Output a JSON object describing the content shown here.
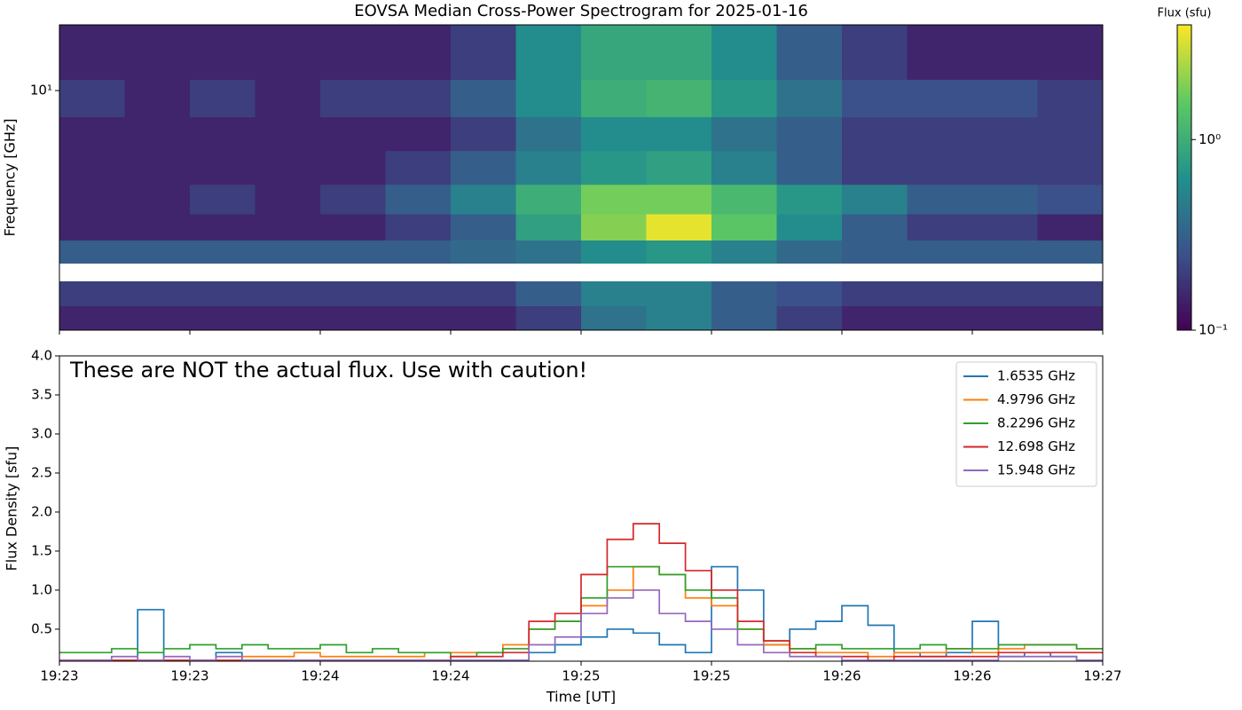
{
  "chart_data": [
    {
      "type": "heatmap",
      "title": "EOVSA Median Cross-Power Spectrogram for 2025-01-16",
      "ylabel": "Frequency [GHz]",
      "log_y": true,
      "xlim": [
        69780,
        70020
      ],
      "ylim": [
        1.3,
        17.5
      ],
      "yticks": [
        {
          "value": 10,
          "label": "10¹"
        }
      ],
      "colormap": "viridis",
      "x_bins": [
        69780,
        69795,
        69810,
        69825,
        69840,
        69855,
        69870,
        69885,
        69900,
        69915,
        69930,
        69945,
        69960,
        69975,
        69990,
        70005,
        70020
      ],
      "y_bins": [
        1.3,
        1.6,
        1.97,
        2.3,
        2.8,
        3.5,
        4.5,
        6,
        8,
        11,
        17.5
      ],
      "z": [
        [
          0.15,
          0.15,
          0.15,
          0.15,
          0.15,
          0.15,
          0.15,
          0.2,
          0.4,
          0.5,
          0.3,
          0.2,
          0.15,
          0.15,
          0.15,
          0.15
        ],
        [
          0.2,
          0.2,
          0.2,
          0.2,
          0.2,
          0.2,
          0.2,
          0.3,
          0.5,
          0.5,
          0.3,
          0.25,
          0.2,
          0.2,
          0.2,
          0.2
        ],
        [
          null,
          null,
          null,
          null,
          null,
          null,
          null,
          null,
          null,
          null,
          null,
          null,
          null,
          null,
          null,
          null
        ],
        [
          0.3,
          0.3,
          0.3,
          0.3,
          0.3,
          0.3,
          0.35,
          0.4,
          0.6,
          0.7,
          0.5,
          0.35,
          0.3,
          0.3,
          0.3,
          0.3
        ],
        [
          0.15,
          0.15,
          0.15,
          0.15,
          0.15,
          0.2,
          0.3,
          0.8,
          2.0,
          3.5,
          1.5,
          0.6,
          0.3,
          0.2,
          0.2,
          0.15
        ],
        [
          0.15,
          0.15,
          0.2,
          0.15,
          0.2,
          0.3,
          0.5,
          1.0,
          1.8,
          1.8,
          1.2,
          0.7,
          0.5,
          0.3,
          0.3,
          0.25
        ],
        [
          0.15,
          0.15,
          0.15,
          0.15,
          0.15,
          0.2,
          0.3,
          0.5,
          0.7,
          0.8,
          0.5,
          0.3,
          0.2,
          0.2,
          0.2,
          0.2
        ],
        [
          0.15,
          0.15,
          0.15,
          0.15,
          0.15,
          0.15,
          0.2,
          0.4,
          0.6,
          0.6,
          0.4,
          0.3,
          0.2,
          0.2,
          0.2,
          0.2
        ],
        [
          0.2,
          0.15,
          0.2,
          0.15,
          0.2,
          0.2,
          0.3,
          0.6,
          1.0,
          1.1,
          0.7,
          0.4,
          0.25,
          0.25,
          0.25,
          0.2
        ],
        [
          0.15,
          0.15,
          0.15,
          0.15,
          0.15,
          0.15,
          0.2,
          0.6,
          0.9,
          0.9,
          0.6,
          0.3,
          0.2,
          0.15,
          0.15,
          0.15
        ]
      ],
      "colorbar": {
        "label": "Flux (sfu)",
        "log": true,
        "lim": [
          0.1,
          4
        ],
        "ticks": [
          {
            "value": 0.1,
            "label": "10⁻¹"
          },
          {
            "value": 1,
            "label": "10⁰"
          }
        ]
      }
    },
    {
      "type": "line",
      "step": true,
      "annotation": "These are NOT the actual flux. Use with caution!",
      "xlabel": "Time [UT]",
      "ylabel": "Flux Density [sfu]",
      "legend": "upper right",
      "xlim": [
        69780,
        70020
      ],
      "xticks": [
        {
          "value": 69780,
          "label": "19:23"
        },
        {
          "value": 69810,
          "label": "19:23"
        },
        {
          "value": 69840,
          "label": "19:24"
        },
        {
          "value": 69870,
          "label": "19:24"
        },
        {
          "value": 69900,
          "label": "19:25"
        },
        {
          "value": 69930,
          "label": "19:25"
        },
        {
          "value": 69960,
          "label": "19:26"
        },
        {
          "value": 69990,
          "label": "19:26"
        },
        {
          "value": 70020,
          "label": "19:27"
        }
      ],
      "ylim": [
        0.09,
        4.0
      ],
      "yticks": [
        0.5,
        {
          "value": 1,
          "label": "1.0"
        },
        1.5,
        {
          "value": 2,
          "label": "2.0"
        },
        2.5,
        {
          "value": 3,
          "label": "3.0"
        },
        3.5,
        {
          "value": 4,
          "label": "4.0"
        }
      ],
      "x": [
        69780,
        69786,
        69792,
        69798,
        69804,
        69810,
        69816,
        69822,
        69828,
        69834,
        69840,
        69846,
        69852,
        69858,
        69864,
        69870,
        69876,
        69882,
        69888,
        69894,
        69900,
        69906,
        69912,
        69918,
        69924,
        69930,
        69936,
        69942,
        69948,
        69954,
        69960,
        69966,
        69972,
        69978,
        69984,
        69990,
        69996,
        70002,
        70008,
        70014
      ],
      "series": [
        {
          "name": "1.6535 GHz",
          "color": "#1f77b4",
          "values": [
            0.1,
            0.1,
            0.1,
            0.75,
            0.1,
            0.1,
            0.2,
            0.1,
            0.1,
            0.1,
            0.1,
            0.1,
            0.1,
            0.1,
            0.1,
            0.1,
            0.1,
            0.1,
            0.2,
            0.3,
            0.4,
            0.5,
            0.45,
            0.3,
            0.2,
            1.3,
            1.0,
            0.3,
            0.5,
            0.6,
            0.8,
            0.55,
            0.2,
            0.15,
            0.2,
            0.6,
            0.15,
            0.2,
            0.15,
            0.1
          ]
        },
        {
          "name": "4.9796 GHz",
          "color": "#ff7f0e",
          "values": [
            0.1,
            0.1,
            0.1,
            0.1,
            0.1,
            0.1,
            0.1,
            0.15,
            0.15,
            0.2,
            0.15,
            0.15,
            0.15,
            0.15,
            0.2,
            0.2,
            0.2,
            0.3,
            0.5,
            0.6,
            0.8,
            1.0,
            1.3,
            1.2,
            0.9,
            0.8,
            0.5,
            0.3,
            0.25,
            0.2,
            0.2,
            0.15,
            0.2,
            0.2,
            0.25,
            0.2,
            0.25,
            0.3,
            0.3,
            0.25
          ]
        },
        {
          "name": "8.2296 GHz",
          "color": "#2ca02c",
          "values": [
            0.2,
            0.2,
            0.25,
            0.2,
            0.25,
            0.3,
            0.25,
            0.3,
            0.25,
            0.25,
            0.3,
            0.2,
            0.25,
            0.2,
            0.2,
            0.15,
            0.2,
            0.25,
            0.5,
            0.6,
            0.9,
            1.3,
            1.3,
            1.2,
            1.0,
            0.9,
            0.5,
            0.35,
            0.25,
            0.3,
            0.25,
            0.25,
            0.25,
            0.3,
            0.25,
            0.25,
            0.3,
            0.3,
            0.3,
            0.25
          ]
        },
        {
          "name": "12.698 GHz",
          "color": "#d62728",
          "values": [
            0.1,
            0.1,
            0.1,
            0.1,
            0.1,
            0.1,
            0.1,
            0.1,
            0.1,
            0.1,
            0.1,
            0.1,
            0.1,
            0.1,
            0.1,
            0.15,
            0.15,
            0.2,
            0.6,
            0.7,
            1.2,
            1.65,
            1.85,
            1.6,
            1.25,
            1.0,
            0.6,
            0.35,
            0.2,
            0.15,
            0.15,
            0.1,
            0.15,
            0.15,
            0.15,
            0.15,
            0.2,
            0.2,
            0.2,
            0.2
          ]
        },
        {
          "name": "15.948 GHz",
          "color": "#9467bd",
          "values": [
            0.1,
            0.1,
            0.15,
            0.1,
            0.15,
            0.1,
            0.15,
            0.1,
            0.1,
            0.1,
            0.1,
            0.1,
            0.1,
            0.1,
            0.1,
            0.1,
            0.1,
            0.1,
            0.3,
            0.4,
            0.7,
            0.9,
            1.0,
            0.7,
            0.6,
            0.5,
            0.3,
            0.2,
            0.15,
            0.15,
            0.1,
            0.1,
            0.1,
            0.1,
            0.1,
            0.1,
            0.15,
            0.15,
            0.15,
            0.1
          ]
        }
      ]
    }
  ]
}
